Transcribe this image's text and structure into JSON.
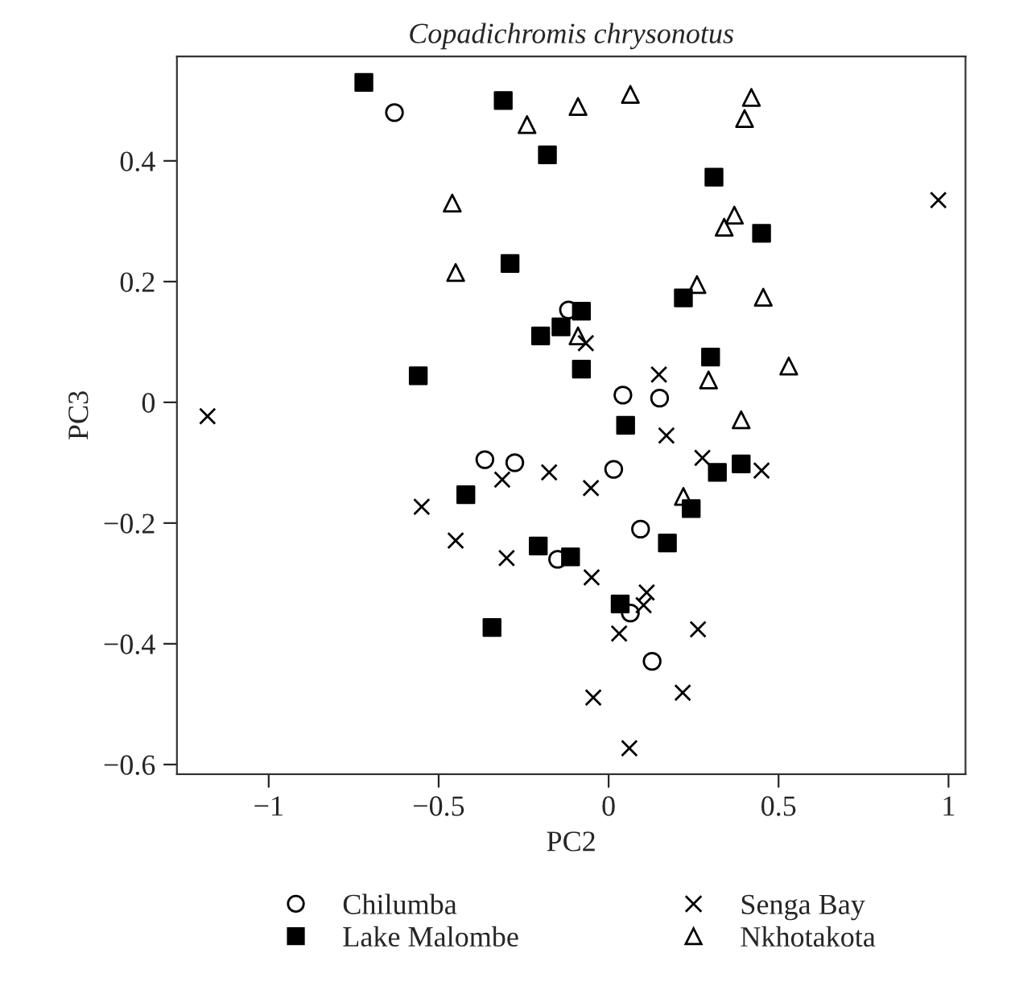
{
  "chart_data": {
    "type": "scatter",
    "title": "Copadichromis chrysonotus",
    "xlabel": "PC2",
    "ylabel": "PC3",
    "xlim": [
      -1.27,
      1.05
    ],
    "ylim": [
      -0.616,
      0.573
    ],
    "xticks": [
      {
        "value": -1,
        "label": "−1"
      },
      {
        "value": -0.5,
        "label": "−0.5"
      },
      0,
      0.5,
      1
    ],
    "yticks": [
      {
        "value": -0.6,
        "label": "−0.6"
      },
      {
        "value": -0.4,
        "label": "−0.4"
      },
      {
        "value": -0.2,
        "label": "−0.2"
      },
      0,
      0.2,
      0.4
    ],
    "grid": false,
    "legend": "bottom",
    "series": [
      {
        "name": "Chilumba",
        "color": "#000000",
        "marker": "circle",
        "x": [
          -0.63,
          -0.118,
          0.042,
          0.15,
          0.015,
          -0.364,
          -0.276,
          -0.15,
          0.094,
          0.064,
          0.128
        ],
        "values": [
          0.48,
          0.153,
          0.012,
          0.007,
          -0.111,
          -0.095,
          -0.1,
          -0.26,
          -0.21,
          -0.349,
          -0.429
        ]
      },
      {
        "name": "Lake Malombe",
        "color": "#000000",
        "marker": "square",
        "x": [
          -0.72,
          -0.31,
          -0.18,
          -0.29,
          -0.2,
          -0.14,
          -0.56,
          0.31,
          0.45,
          0.22,
          -0.08,
          -0.08,
          0.3,
          0.05,
          0.32,
          0.39,
          -0.42,
          -0.207,
          -0.343,
          0.243,
          0.173,
          -0.112,
          0.034
        ],
        "values": [
          0.53,
          0.5,
          0.41,
          0.23,
          0.11,
          0.125,
          0.044,
          0.373,
          0.28,
          0.173,
          0.151,
          0.055,
          0.075,
          -0.038,
          -0.116,
          -0.102,
          -0.153,
          -0.238,
          -0.373,
          -0.176,
          -0.233,
          -0.256,
          -0.334
        ]
      },
      {
        "name": "Senga Bay",
        "color": "#000000",
        "marker": "cross",
        "x": [
          -1.18,
          0.97,
          -0.067,
          0.148,
          0.17,
          0.276,
          0.45,
          -0.175,
          -0.313,
          -0.55,
          -0.45,
          -0.3,
          -0.052,
          -0.05,
          0.112,
          0.103,
          0.031,
          0.263,
          -0.045,
          0.218,
          0.061
        ],
        "values": [
          -0.023,
          0.335,
          0.098,
          0.046,
          -0.055,
          -0.092,
          -0.113,
          -0.116,
          -0.128,
          -0.173,
          -0.229,
          -0.258,
          -0.142,
          -0.29,
          -0.315,
          -0.336,
          -0.383,
          -0.376,
          -0.489,
          -0.481,
          -0.573
        ]
      },
      {
        "name": "Nkhotakota",
        "color": "#000000",
        "marker": "triangle",
        "x": [
          -0.24,
          -0.46,
          -0.45,
          0.064,
          -0.09,
          0.42,
          0.4,
          0.37,
          0.34,
          0.26,
          0.455,
          -0.09,
          0.53,
          0.294,
          0.39,
          0.22
        ],
        "values": [
          0.46,
          0.33,
          0.215,
          0.51,
          0.49,
          0.505,
          0.47,
          0.31,
          0.29,
          0.195,
          0.174,
          0.11,
          0.06,
          0.037,
          -0.029,
          -0.156
        ]
      }
    ]
  }
}
